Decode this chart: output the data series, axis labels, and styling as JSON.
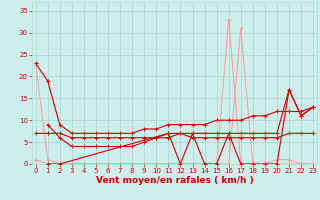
{
  "background_color": "#cceeed",
  "grid_color": "#aaddcc",
  "line_color_dark": "#cc0000",
  "line_color_light": "#ff9999",
  "xlabel": "Vent moyen/en rafales ( km/h )",
  "xlabel_color": "#cc0000",
  "xlabel_fontsize": 6.5,
  "ylabel_ticks": [
    0,
    5,
    10,
    15,
    20,
    25,
    30,
    35
  ],
  "xticks": [
    0,
    1,
    2,
    3,
    4,
    5,
    6,
    7,
    8,
    9,
    10,
    11,
    12,
    13,
    14,
    15,
    16,
    17,
    18,
    19,
    20,
    21,
    22,
    23
  ],
  "xlim": [
    -0.3,
    23.3
  ],
  "ylim": [
    0,
    37
  ],
  "tick_fontsize": 5.0,
  "tick_color": "#cc0000",
  "dark1_x": [
    0,
    1,
    2,
    3,
    4,
    5,
    6,
    7,
    8,
    9,
    10,
    11,
    12,
    13,
    14,
    15,
    16,
    17,
    18,
    19,
    20,
    21,
    22,
    23
  ],
  "dark1_y": [
    23,
    19,
    9,
    7,
    7,
    7,
    7,
    7,
    7,
    8,
    8,
    9,
    9,
    9,
    9,
    10,
    10,
    10,
    11,
    11,
    12,
    12,
    12,
    13
  ],
  "dark2_x": [
    0,
    1,
    2,
    3,
    4,
    5,
    6,
    7,
    8,
    9,
    10,
    11,
    12,
    13,
    14,
    15,
    16,
    17,
    18,
    19,
    20,
    21,
    22,
    23
  ],
  "dark2_y": [
    7,
    7,
    7,
    6,
    6,
    6,
    6,
    6,
    6,
    6,
    6,
    6,
    7,
    6,
    6,
    6,
    6,
    6,
    6,
    6,
    6,
    7,
    7,
    7
  ],
  "dark3_x": [
    1,
    2,
    3,
    4,
    5,
    6,
    7,
    8,
    9,
    10,
    11,
    12,
    13,
    14,
    15,
    16,
    17,
    18,
    19,
    20,
    21,
    22,
    23
  ],
  "dark3_y": [
    9,
    6,
    4,
    4,
    4,
    4,
    4,
    4,
    5,
    6,
    7,
    7,
    7,
    7,
    7,
    7,
    7,
    7,
    7,
    7,
    17,
    11,
    13
  ],
  "dark4_x": [
    1,
    2,
    11,
    12,
    13,
    14,
    15,
    16,
    17,
    18,
    19,
    20,
    21,
    22,
    23
  ],
  "dark4_y": [
    0,
    0,
    7,
    0,
    7,
    0,
    0,
    7,
    0,
    0,
    0,
    0,
    17,
    11,
    13
  ],
  "light1_x": [
    0,
    1,
    2,
    3,
    4,
    5,
    6,
    7,
    8,
    9,
    10,
    11,
    12,
    13,
    14,
    15,
    16,
    17,
    18,
    19,
    20,
    21,
    22,
    23
  ],
  "light1_y": [
    23,
    1,
    0,
    0,
    0,
    0,
    0,
    0,
    0,
    0,
    0,
    0,
    0,
    0,
    0,
    0,
    33,
    0,
    0,
    0,
    0,
    0,
    0,
    0
  ],
  "light2_x": [
    0,
    1,
    2,
    3,
    4,
    5,
    6,
    7,
    8,
    9,
    10,
    11,
    12,
    13,
    14,
    15,
    16,
    17,
    18,
    19,
    20,
    21,
    22,
    23
  ],
  "light2_y": [
    1,
    0,
    0,
    0,
    0,
    0,
    0,
    0,
    0,
    0,
    0,
    0,
    0,
    0,
    0,
    0,
    0,
    31,
    0,
    0,
    1,
    1,
    0,
    0
  ]
}
